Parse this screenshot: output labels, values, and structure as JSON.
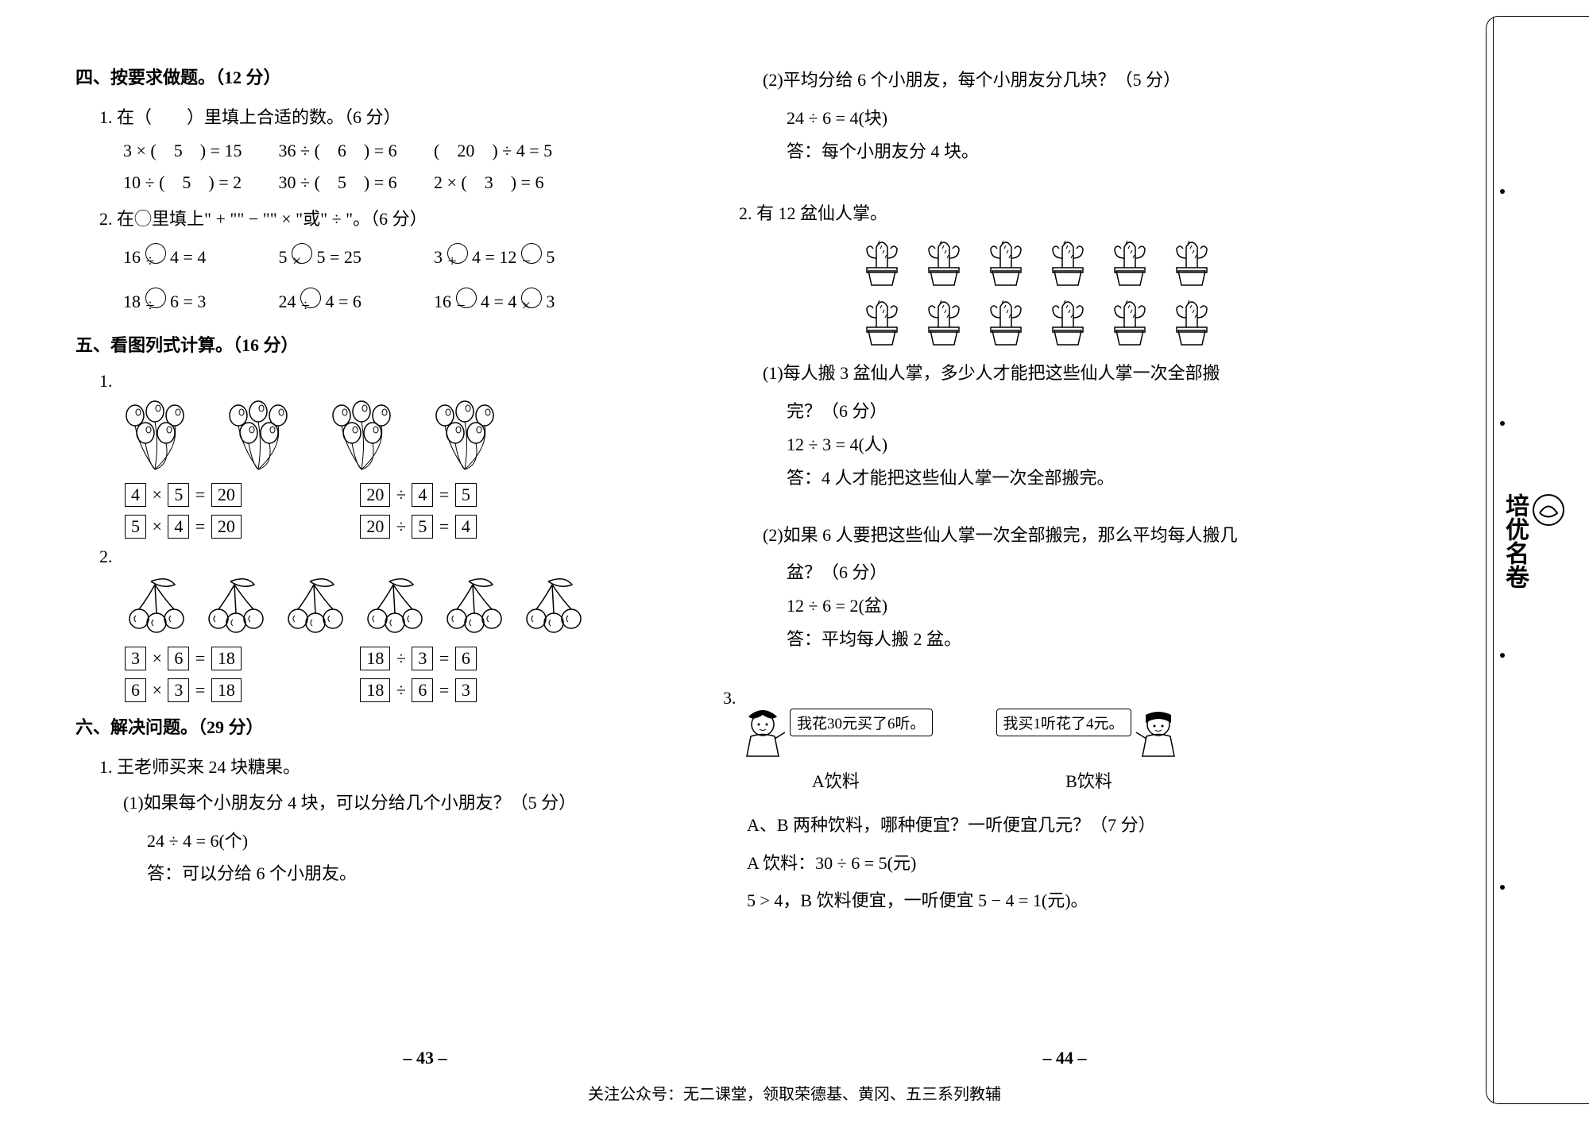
{
  "sec4": {
    "title": "四、按要求做题。（12 分）",
    "q1_title": "1. 在（　　）里填上合适的数。（6 分）",
    "q1_eqs": [
      [
        "3 × (　5　) = 15",
        "36 ÷ (　6　) = 6",
        "(　20　) ÷ 4 = 5"
      ],
      [
        "10 ÷ (　5　) = 2",
        "30 ÷ (　5　) = 6",
        "2 × (　3　) = 6"
      ]
    ],
    "q2_title": "2. 在◯里填上\" + \"\" − \"\" × \"或\" ÷ \"。（6 分）",
    "q2_rows": [
      [
        {
          "l": "16",
          "op": "÷",
          "r": "4 = 4"
        },
        {
          "l": "5",
          "op": "×",
          "r": "5 = 25"
        },
        {
          "l": "3",
          "op": "+",
          "r": "4 = 12",
          "op2": "−",
          "r2": "5"
        }
      ],
      [
        {
          "l": "18",
          "op": "÷",
          "r": "6 = 3"
        },
        {
          "l": "24",
          "op": "÷",
          "r": "4 = 6"
        },
        {
          "l": "16",
          "op": "−",
          "r": "4 = 4",
          "op2": "×",
          "r2": "3"
        }
      ]
    ]
  },
  "sec5": {
    "title": "五、看图列式计算。（16 分）",
    "balloons_groups": 4,
    "cherries_groups": 6,
    "q1_eqs": [
      {
        "a": "4",
        "op": "×",
        "b": "5",
        "eq": "20",
        "c": "20",
        "op2": "÷",
        "d": "4",
        "eq2": "5"
      },
      {
        "a": "5",
        "op": "×",
        "b": "4",
        "eq": "20",
        "c": "20",
        "op2": "÷",
        "d": "5",
        "eq2": "4"
      }
    ],
    "q2_eqs": [
      {
        "a": "3",
        "op": "×",
        "b": "6",
        "eq": "18",
        "c": "18",
        "op2": "÷",
        "d": "3",
        "eq2": "6"
      },
      {
        "a": "6",
        "op": "×",
        "b": "3",
        "eq": "18",
        "c": "18",
        "op2": "÷",
        "d": "6",
        "eq2": "3"
      }
    ]
  },
  "sec6": {
    "title": "六、解决问题。（29 分）",
    "q1_title": "1. 王老师买来 24 块糖果。",
    "q1_1_q": "(1)如果每个小朋友分 4 块，可以分给几个小朋友？（5 分）",
    "q1_1_calc": "24 ÷ 4 = 6(个)",
    "q1_1_ans": "答：可以分给 6 个小朋友。",
    "q1_2_q": "(2)平均分给 6 个小朋友，每个小朋友分几块？（5 分）",
    "q1_2_calc": "24 ÷ 6 = 4(块)",
    "q1_2_ans": "答：每个小朋友分 4 块。",
    "q2_title": "2. 有 12 盆仙人掌。",
    "q2_1_q": "(1)每人搬 3 盆仙人掌，多少人才能把这些仙人掌一次全部搬",
    "q2_1_q2": "完？（6 分）",
    "q2_1_calc": "12 ÷ 3 = 4(人)",
    "q2_1_ans": "答：4 人才能把这些仙人掌一次全部搬完。",
    "q2_2_q": "(2)如果 6 人要把这些仙人掌一次全部搬完，那么平均每人搬几",
    "q2_2_q2": "盆？（6 分）",
    "q2_2_calc": "12 ÷ 6 = 2(盆)",
    "q2_2_ans": "答：平均每人搬 2 盆。",
    "q3_speech_a": "我花30元买了6听。",
    "q3_label_a": "A饮料",
    "q3_speech_b": "我买1听花了4元。",
    "q3_label_b": "B饮料",
    "q3_q": "A、B 两种饮料，哪种便宜？一听便宜几元？（7 分）",
    "q3_calc1": "A 饮料：30 ÷ 6 = 5(元)",
    "q3_calc2": "5 > 4，B 饮料便宜，一听便宜 5 − 4 = 1(元)。"
  },
  "pagenum_left": "– 43 –",
  "pagenum_right": "– 44 –",
  "footer": "关注公众号：无二课堂，领取荣德基、黄冈、五三系列教辅",
  "vert_label": "培优名卷"
}
